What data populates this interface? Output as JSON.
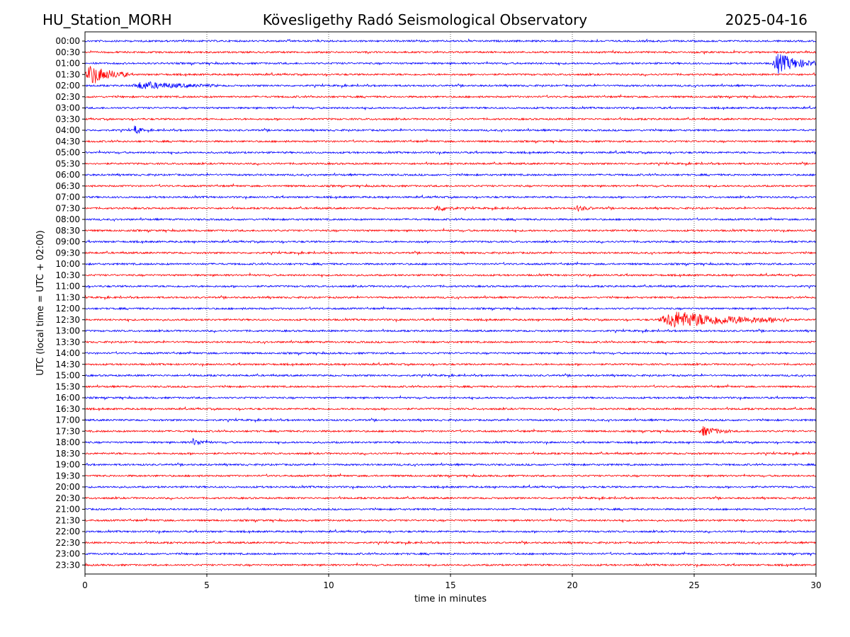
{
  "header": {
    "station": "HU_Station_MORH",
    "observatory": "Kövesligethy Radó Seismological Observatory",
    "date": "2025-04-16"
  },
  "chart_data": {
    "type": "line",
    "title": "Kövesligethy Radó Seismological Observatory",
    "xlabel": "time in minutes",
    "ylabel": "UTC (local time = UTC + 02:00)",
    "xlim": [
      0,
      30
    ],
    "xticks": [
      0,
      5,
      10,
      15,
      20,
      25,
      30
    ],
    "grid_x": true,
    "grid_style": "dotted",
    "trace_colors": [
      "#0000ff",
      "#ff0000"
    ],
    "rows": [
      "00:00",
      "00:30",
      "01:00",
      "01:30",
      "02:00",
      "02:30",
      "03:00",
      "03:30",
      "04:00",
      "04:30",
      "05:00",
      "05:30",
      "06:00",
      "06:30",
      "07:00",
      "07:30",
      "08:00",
      "08:30",
      "09:00",
      "09:30",
      "10:00",
      "10:30",
      "11:00",
      "11:30",
      "12:00",
      "12:30",
      "13:00",
      "13:30",
      "14:00",
      "14:30",
      "15:00",
      "15:30",
      "16:00",
      "16:30",
      "17:00",
      "17:30",
      "18:00",
      "18:30",
      "19:00",
      "19:30",
      "20:00",
      "20:30",
      "21:00",
      "21:30",
      "22:00",
      "22:30",
      "23:00",
      "23:30"
    ],
    "events": [
      {
        "row": "01:00",
        "start_min": 28.2,
        "end_min": 30.0,
        "amplitude": 0.9
      },
      {
        "row": "01:30",
        "start_min": 0.0,
        "end_min": 1.8,
        "amplitude": 0.85
      },
      {
        "row": "02:00",
        "start_min": 1.9,
        "end_min": 5.5,
        "amplitude": 0.3
      },
      {
        "row": "04:00",
        "start_min": 2.0,
        "end_min": 2.4,
        "amplitude": 0.45
      },
      {
        "row": "07:30",
        "start_min": 14.3,
        "end_min": 15.3,
        "amplitude": 0.25
      },
      {
        "row": "07:30",
        "start_min": 20.1,
        "end_min": 20.9,
        "amplitude": 0.25
      },
      {
        "row": "12:30",
        "start_min": 23.5,
        "end_min": 29.0,
        "amplitude": 0.75
      },
      {
        "row": "17:30",
        "start_min": 25.2,
        "end_min": 26.5,
        "amplitude": 0.4
      },
      {
        "row": "18:00",
        "start_min": 4.3,
        "end_min": 5.2,
        "amplitude": 0.3
      }
    ]
  }
}
